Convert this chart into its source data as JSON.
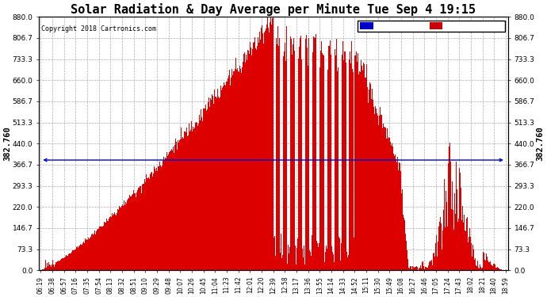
{
  "title": "Solar Radiation & Day Average per Minute Tue Sep 4 19:15",
  "copyright": "Copyright 2018 Cartronics.com",
  "median_value": 382.76,
  "y_max": 880.0,
  "y_min": 0.0,
  "y_ticks": [
    0.0,
    73.3,
    146.7,
    220.0,
    293.3,
    366.7,
    440.0,
    513.3,
    586.7,
    660.0,
    733.3,
    806.7,
    880.0
  ],
  "y_tick_labels": [
    "0.0",
    "73.3",
    "146.7",
    "220.0",
    "293.3",
    "366.7",
    "440.0",
    "513.3",
    "586.7",
    "660.0",
    "733.3",
    "806.7",
    "880.0"
  ],
  "legend_median_color": "#0000cc",
  "legend_radiation_color": "#cc0000",
  "bar_color": "#dd0000",
  "line_color": "#0000cc",
  "background_color": "#ffffff",
  "grid_color": "#aaaaaa",
  "title_fontsize": 11,
  "median_label": "382.760",
  "x_labels": [
    "06:19",
    "06:38",
    "06:57",
    "07:16",
    "07:35",
    "07:54",
    "08:13",
    "08:32",
    "08:51",
    "09:10",
    "09:29",
    "09:48",
    "10:07",
    "10:26",
    "10:45",
    "11:04",
    "11:23",
    "11:42",
    "12:01",
    "12:20",
    "12:39",
    "12:58",
    "13:17",
    "13:36",
    "13:55",
    "14:14",
    "14:33",
    "14:52",
    "15:11",
    "15:30",
    "15:49",
    "16:08",
    "16:27",
    "16:46",
    "17:05",
    "17:24",
    "17:43",
    "18:02",
    "18:21",
    "18:40",
    "18:59"
  ]
}
